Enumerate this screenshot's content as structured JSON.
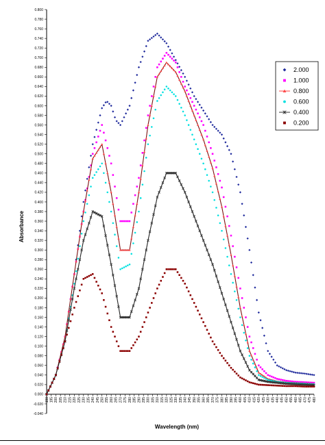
{
  "chart_data": {
    "type": "scatter",
    "xlabel": "Wavelength (nm)",
    "ylabel": "Absorbance",
    "x_ticks": [
      "190",
      "195",
      "200",
      "205",
      "210",
      "215",
      "220",
      "225",
      "230",
      "235",
      "240",
      "245",
      "250",
      "255",
      "260",
      "265",
      "270",
      "275",
      "280",
      "285",
      "290",
      "295",
      "300",
      "305",
      "310",
      "315",
      "320",
      "325",
      "330",
      "335",
      "340",
      "345",
      "350",
      "355",
      "360",
      "365",
      "370",
      "375",
      "380",
      "385",
      "390",
      "395",
      "400",
      "405",
      "410",
      "415",
      "420",
      "425",
      "430",
      "435",
      "440",
      "445",
      "450",
      "455",
      "460",
      "465",
      "470",
      "475",
      "480"
    ],
    "y_ticks": [
      "-0.040",
      "-0.020",
      "0.000",
      "0.020",
      "0.040",
      "0.060",
      "0.080",
      "0.100",
      "0.120",
      "0.140",
      "0.160",
      "0.180",
      "0.200",
      "0.220",
      "0.240",
      "0.260",
      "0.280",
      "0.300",
      "0.320",
      "0.340",
      "0.360",
      "0.380",
      "0.400",
      "0.420",
      "0.440",
      "0.460",
      "0.480",
      "0.500",
      "0.520",
      "0.540",
      "0.560",
      "0.580",
      "0.600",
      "0.620",
      "0.640",
      "0.660",
      "0.680",
      "0.700",
      "0.720",
      "0.740",
      "0.760",
      "0.780",
      "0.800"
    ],
    "xlim": [
      190,
      480
    ],
    "ylim": [
      -0.04,
      0.8
    ],
    "legend_position": "right",
    "series": [
      {
        "name": "2.000",
        "color": "#1f2a9c",
        "marker": "diamond",
        "x": [
          190,
          200,
          210,
          220,
          230,
          240,
          250,
          255,
          260,
          265,
          270,
          280,
          290,
          300,
          310,
          320,
          330,
          340,
          350,
          360,
          370,
          380,
          390,
          400,
          410,
          420,
          430,
          440,
          450,
          460,
          470,
          480
        ],
        "y": [
          0.0,
          0.04,
          0.12,
          0.25,
          0.4,
          0.52,
          0.595,
          0.61,
          0.6,
          0.57,
          0.56,
          0.6,
          0.68,
          0.735,
          0.75,
          0.73,
          0.695,
          0.66,
          0.62,
          0.59,
          0.56,
          0.54,
          0.5,
          0.42,
          0.3,
          0.17,
          0.09,
          0.06,
          0.05,
          0.045,
          0.043,
          0.04
        ]
      },
      {
        "name": "1.000",
        "color": "#ff00ff",
        "marker": "square",
        "x": [
          190,
          200,
          210,
          220,
          230,
          240,
          250,
          260,
          270,
          280,
          290,
          300,
          310,
          320,
          330,
          340,
          350,
          360,
          370,
          380,
          390,
          400,
          410,
          420,
          430,
          440,
          450,
          460,
          470,
          480
        ],
        "y": [
          0.0,
          0.04,
          0.12,
          0.25,
          0.38,
          0.5,
          0.56,
          0.48,
          0.36,
          0.36,
          0.45,
          0.58,
          0.68,
          0.71,
          0.69,
          0.64,
          0.6,
          0.56,
          0.5,
          0.43,
          0.33,
          0.22,
          0.12,
          0.06,
          0.04,
          0.032,
          0.028,
          0.026,
          0.025,
          0.024
        ]
      },
      {
        "name": "0.800",
        "color": "#ff4444",
        "marker": "triangle",
        "x": [
          190,
          200,
          210,
          220,
          230,
          240,
          250,
          260,
          270,
          280,
          290,
          300,
          310,
          320,
          330,
          340,
          350,
          360,
          370,
          380,
          390,
          400,
          410,
          420,
          430,
          440,
          450,
          460,
          470,
          480
        ],
        "y": [
          0.0,
          0.04,
          0.12,
          0.25,
          0.38,
          0.49,
          0.52,
          0.42,
          0.3,
          0.3,
          0.42,
          0.56,
          0.66,
          0.69,
          0.67,
          0.63,
          0.58,
          0.53,
          0.47,
          0.39,
          0.29,
          0.18,
          0.09,
          0.045,
          0.032,
          0.027,
          0.025,
          0.024,
          0.023,
          0.022
        ]
      },
      {
        "name": "0.600",
        "color": "#00e0e0",
        "marker": "circle",
        "x": [
          190,
          200,
          210,
          220,
          230,
          240,
          250,
          260,
          270,
          280,
          290,
          300,
          310,
          320,
          330,
          340,
          350,
          360,
          370,
          380,
          390,
          400,
          410,
          420,
          430,
          440,
          450,
          460,
          470,
          480
        ],
        "y": [
          0.0,
          0.04,
          0.11,
          0.23,
          0.36,
          0.45,
          0.48,
          0.38,
          0.26,
          0.27,
          0.38,
          0.52,
          0.61,
          0.64,
          0.62,
          0.58,
          0.53,
          0.48,
          0.42,
          0.34,
          0.25,
          0.16,
          0.08,
          0.04,
          0.03,
          0.026,
          0.024,
          0.023,
          0.022,
          0.021
        ]
      },
      {
        "name": "0.400",
        "color": "#333333",
        "marker": "x",
        "x": [
          190,
          200,
          210,
          220,
          230,
          240,
          250,
          260,
          270,
          280,
          290,
          300,
          310,
          320,
          330,
          340,
          350,
          360,
          370,
          380,
          390,
          400,
          410,
          420,
          430,
          440,
          450,
          460,
          470,
          480
        ],
        "y": [
          0.0,
          0.04,
          0.11,
          0.22,
          0.32,
          0.38,
          0.37,
          0.27,
          0.16,
          0.16,
          0.22,
          0.32,
          0.41,
          0.46,
          0.46,
          0.42,
          0.37,
          0.32,
          0.27,
          0.21,
          0.15,
          0.09,
          0.05,
          0.03,
          0.026,
          0.024,
          0.022,
          0.021,
          0.02,
          0.019
        ]
      },
      {
        "name": "0.200",
        "color": "#8b0000",
        "marker": "square",
        "x": [
          190,
          200,
          210,
          220,
          230,
          240,
          250,
          260,
          270,
          280,
          290,
          300,
          310,
          320,
          330,
          340,
          350,
          360,
          370,
          380,
          390,
          400,
          410,
          420,
          430,
          440,
          450,
          460,
          470,
          480
        ],
        "y": [
          0.0,
          0.04,
          0.11,
          0.18,
          0.24,
          0.25,
          0.21,
          0.14,
          0.09,
          0.09,
          0.12,
          0.17,
          0.22,
          0.26,
          0.26,
          0.23,
          0.19,
          0.15,
          0.11,
          0.08,
          0.055,
          0.035,
          0.025,
          0.02,
          0.019,
          0.018,
          0.017,
          0.017,
          0.016,
          0.016
        ]
      }
    ]
  }
}
